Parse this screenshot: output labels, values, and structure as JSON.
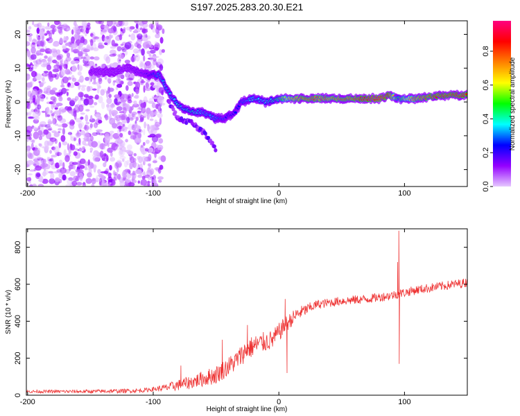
{
  "title": "S197.2025.283.20.30.E21",
  "chart_data": [
    {
      "type": "heatmap",
      "xlabel": "Height of straight line (km)",
      "ylabel": "Frequency (Hz)",
      "xlim": [
        -201,
        150
      ],
      "ylim": [
        -25,
        24
      ],
      "xticks": [
        -200,
        -100,
        0,
        100
      ],
      "xtick_labels": [
        "-200",
        "-100",
        "0",
        "100"
      ],
      "yticks": [
        -20,
        -10,
        0,
        10,
        20
      ],
      "ytick_labels": [
        "-20",
        "-10",
        "0",
        "10",
        "20"
      ],
      "colorbar": {
        "label": "Normalized spectral amplitude",
        "range": [
          0,
          0.98
        ],
        "ticks": [
          0,
          0.2,
          0.4,
          0.6,
          0.8
        ],
        "tick_labels": [
          "0.0",
          "0.2",
          "0.4",
          "0.6",
          "0.8"
        ],
        "colors": [
          "#e6c8ff",
          "#9400ff",
          "#0000ff",
          "#00ffff",
          "#00ff00",
          "#ffff00",
          "#ff8000",
          "#ff0000",
          "#ff0080"
        ]
      },
      "ridge": {
        "x": [
          -145,
          -130,
          -120,
          -105,
          -95,
          -88,
          -80,
          -70,
          -60,
          -50,
          -45,
          -40,
          -35,
          -30,
          -20,
          -10,
          0,
          10,
          20,
          40,
          60,
          80,
          88,
          95,
          110,
          130,
          150
        ],
        "y": [
          9,
          9,
          10,
          8,
          8,
          3,
          -1,
          -3,
          -3,
          -5,
          -5,
          -4,
          -3,
          0,
          1,
          0,
          1,
          1,
          1,
          1,
          1,
          1,
          2,
          1,
          1,
          2,
          2
        ],
        "amplitude": [
          0.15,
          0.15,
          0.15,
          0.2,
          0.35,
          0.35,
          0.4,
          0.45,
          0.35,
          0.35,
          0.3,
          0.25,
          0.25,
          0.3,
          0.4,
          0.4,
          0.5,
          0.75,
          0.85,
          0.8,
          0.85,
          0.95,
          0.9,
          0.5,
          0.8,
          0.9,
          0.9
        ]
      },
      "branch": {
        "x": [
          -88,
          -80,
          -70,
          -60,
          -55,
          -50
        ],
        "y": [
          0,
          -5,
          -6,
          -9,
          -11,
          -14
        ]
      },
      "noise_region_x": [
        -201,
        -92
      ]
    },
    {
      "type": "line",
      "xlabel": "Height of straight line (km)",
      "ylabel": "SNR (10 * v/v)",
      "xlim": [
        -201,
        150
      ],
      "ylim": [
        0,
        900
      ],
      "xticks": [
        -200,
        -100,
        0,
        100
      ],
      "xtick_labels": [
        "-200",
        "-100",
        "0",
        "100"
      ],
      "yticks": [
        0,
        200,
        400,
        600,
        800
      ],
      "ytick_labels": [
        "0",
        "200",
        "400",
        "600",
        "800"
      ],
      "color": "#ee3333",
      "trend": {
        "x": [
          -201,
          -150,
          -110,
          -90,
          -70,
          -50,
          -35,
          -25,
          -15,
          -5,
          5,
          15,
          30,
          50,
          70,
          90,
          110,
          130,
          150
        ],
        "y": [
          20,
          20,
          25,
          40,
          70,
          110,
          180,
          250,
          280,
          300,
          380,
          440,
          490,
          510,
          520,
          540,
          570,
          590,
          610
        ]
      },
      "noise_amplitude": {
        "x": [
          -201,
          -100,
          -80,
          -50,
          -20,
          0,
          30,
          150
        ],
        "y": [
          8,
          12,
          30,
          50,
          60,
          50,
          25,
          25
        ]
      },
      "spikes": [
        {
          "x": 95.5,
          "y": 890
        },
        {
          "x": 95.8,
          "y": 170
        },
        {
          "x": 94.5,
          "y": 720
        },
        {
          "x": 5,
          "y": 520
        },
        {
          "x": 6.5,
          "y": 120
        },
        {
          "x": -45,
          "y": 300
        },
        {
          "x": -25,
          "y": 380
        },
        {
          "x": -78,
          "y": 160
        },
        {
          "x": -52,
          "y": 110
        }
      ]
    }
  ]
}
